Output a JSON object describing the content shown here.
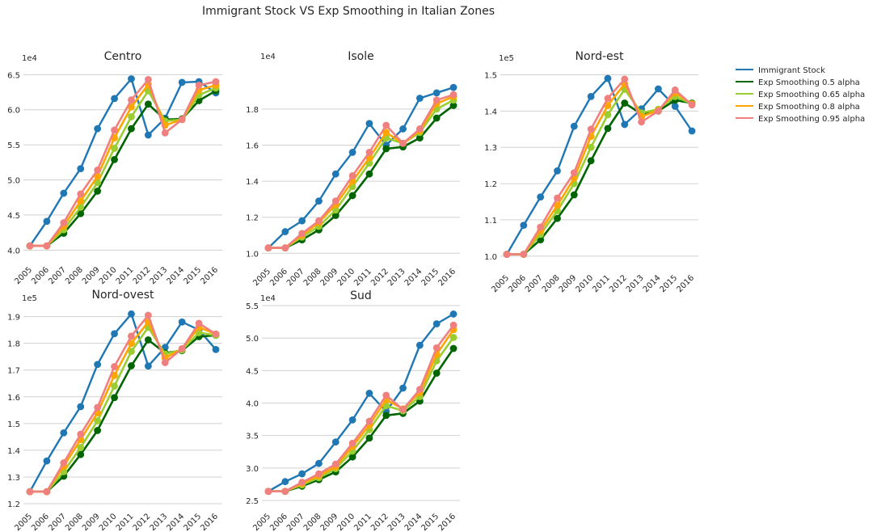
{
  "chart_data": {
    "type": "line",
    "title": "Immigrant Stock VS Exp Smoothing in Italian Zones",
    "legend": {
      "placement": "top-right",
      "entries": [
        "Immigrant Stock",
        "Exp Smoothing 0.5 alpha",
        "Exp Smoothing 0.65 alpha",
        "Exp Smoothing 0.8 alpha",
        "Exp Smoothing 0.95 alpha"
      ]
    },
    "colors": {
      "Immigrant Stock": "#1f77b4",
      "Exp Smoothing 0.5 alpha": "#006400",
      "Exp Smoothing 0.65 alpha": "#9acd32",
      "Exp Smoothing 0.8 alpha": "#ffa500",
      "Exp Smoothing 0.95 alpha": "#f08080",
      "grid": "#d0d0d0"
    },
    "grid": "horizontal",
    "x_tick_labels": [
      "2005",
      "2006",
      "2007",
      "2008",
      "2009",
      "2010",
      "2011",
      "2012",
      "2013",
      "2014",
      "2015",
      "2016"
    ],
    "panels": [
      {
        "title": "Centro",
        "offset_text": "1e4",
        "ylim": [
          3.9,
          6.55
        ],
        "yticks": [
          4.0,
          4.5,
          5.0,
          5.5,
          6.0,
          6.5
        ],
        "ytick_labels": [
          "4.0",
          "4.5",
          "5.0",
          "5.5",
          "6.0",
          "6.5"
        ],
        "series": [
          {
            "name": "Immigrant Stock",
            "values": [
              4.06,
              4.41,
              4.81,
              5.16,
              5.73,
              6.16,
              6.44,
              5.64,
              5.88,
              6.39,
              6.4,
              6.24
            ]
          },
          {
            "name": "Exp Smoothing 0.5 alpha",
            "values": [
              4.06,
              4.06,
              4.24,
              4.52,
              4.84,
              5.29,
              5.73,
              6.08,
              5.86,
              5.87,
              6.13,
              6.27
            ]
          },
          {
            "name": "Exp Smoothing 0.65 alpha",
            "values": [
              4.06,
              4.06,
              4.29,
              4.61,
              4.96,
              5.45,
              5.9,
              6.27,
              5.84,
              5.86,
              6.21,
              6.31
            ]
          },
          {
            "name": "Exp Smoothing 0.8 alpha",
            "values": [
              4.06,
              4.06,
              4.34,
              4.7,
              5.05,
              5.6,
              6.04,
              6.36,
              5.78,
              5.86,
              6.28,
              6.35
            ]
          },
          {
            "name": "Exp Smoothing 0.95 alpha",
            "values": [
              4.06,
              4.06,
              4.39,
              4.8,
              5.14,
              5.71,
              6.14,
              6.43,
              5.67,
              5.86,
              6.35,
              6.4
            ]
          }
        ]
      },
      {
        "title": "Isole",
        "offset_text": "1e4",
        "ylim": [
          0.97,
          1.97
        ],
        "yticks": [
          1.0,
          1.2,
          1.4,
          1.6,
          1.8
        ],
        "ytick_labels": [
          "1.0",
          "1.2",
          "1.4",
          "1.6",
          "1.8"
        ],
        "series": [
          {
            "name": "Immigrant Stock",
            "values": [
              1.03,
              1.12,
              1.18,
              1.29,
              1.44,
              1.56,
              1.72,
              1.6,
              1.69,
              1.86,
              1.89,
              1.92
            ]
          },
          {
            "name": "Exp Smoothing 0.5 alpha",
            "values": [
              1.03,
              1.03,
              1.075,
              1.13,
              1.21,
              1.32,
              1.44,
              1.58,
              1.59,
              1.64,
              1.75,
              1.82
            ]
          },
          {
            "name": "Exp Smoothing 0.65 alpha",
            "values": [
              1.03,
              1.03,
              1.09,
              1.15,
              1.24,
              1.37,
              1.5,
              1.64,
              1.61,
              1.67,
              1.8,
              1.85
            ]
          },
          {
            "name": "Exp Smoothing 0.8 alpha",
            "values": [
              1.03,
              1.03,
              1.1,
              1.17,
              1.27,
              1.4,
              1.53,
              1.67,
              1.61,
              1.68,
              1.83,
              1.87
            ]
          },
          {
            "name": "Exp Smoothing 0.95 alpha",
            "values": [
              1.03,
              1.03,
              1.11,
              1.18,
              1.29,
              1.43,
              1.56,
              1.71,
              1.61,
              1.69,
              1.85,
              1.88
            ]
          }
        ]
      },
      {
        "title": "Nord-est",
        "offset_text": "1e5",
        "ylim": [
          0.975,
          1.51
        ],
        "yticks": [
          1.0,
          1.1,
          1.2,
          1.3,
          1.4,
          1.5
        ],
        "ytick_labels": [
          "1.0",
          "1.1",
          "1.2",
          "1.3",
          "1.4",
          "1.5"
        ],
        "series": [
          {
            "name": "Immigrant Stock",
            "values": [
              1.005,
              1.085,
              1.163,
              1.235,
              1.358,
              1.44,
              1.49,
              1.363,
              1.406,
              1.461,
              1.413,
              1.345
            ]
          },
          {
            "name": "Exp Smoothing 0.5 alpha",
            "values": [
              1.005,
              1.005,
              1.045,
              1.104,
              1.169,
              1.263,
              1.352,
              1.422,
              1.392,
              1.4,
              1.43,
              1.422
            ]
          },
          {
            "name": "Exp Smoothing 0.65 alpha",
            "values": [
              1.005,
              1.005,
              1.06,
              1.125,
              1.2,
              1.3,
              1.39,
              1.46,
              1.395,
              1.405,
              1.44,
              1.42
            ]
          },
          {
            "name": "Exp Smoothing 0.8 alpha",
            "values": [
              1.005,
              1.005,
              1.07,
              1.14,
              1.215,
              1.33,
              1.415,
              1.475,
              1.385,
              1.402,
              1.45,
              1.42
            ]
          },
          {
            "name": "Exp Smoothing 0.95 alpha",
            "values": [
              1.005,
              1.005,
              1.08,
              1.16,
              1.23,
              1.35,
              1.435,
              1.488,
              1.37,
              1.4,
              1.458,
              1.417
            ]
          }
        ]
      },
      {
        "title": "Nord-ovest",
        "offset_text": "1e5",
        "ylim": [
          1.2,
          1.92
        ],
        "yticks": [
          1.2,
          1.3,
          1.4,
          1.5,
          1.6,
          1.7,
          1.8,
          1.9
        ],
        "ytick_labels": [
          "1.2",
          "1.3",
          "1.4",
          "1.5",
          "1.6",
          "1.7",
          "1.8",
          "1.9"
        ],
        "series": [
          {
            "name": "Immigrant Stock",
            "values": [
              1.245,
              1.36,
              1.465,
              1.563,
              1.721,
              1.836,
              1.91,
              1.715,
              1.785,
              1.88,
              1.85,
              1.777
            ]
          },
          {
            "name": "Exp Smoothing 0.5 alpha",
            "values": [
              1.245,
              1.245,
              1.303,
              1.384,
              1.474,
              1.597,
              1.716,
              1.813,
              1.764,
              1.773,
              1.825,
              1.83
            ]
          },
          {
            "name": "Exp Smoothing 0.65 alpha",
            "values": [
              1.245,
              1.245,
              1.32,
              1.41,
              1.51,
              1.64,
              1.77,
              1.86,
              1.76,
              1.775,
              1.84,
              1.83
            ]
          },
          {
            "name": "Exp Smoothing 0.8 alpha",
            "values": [
              1.245,
              1.245,
              1.34,
              1.44,
              1.54,
              1.68,
              1.8,
              1.88,
              1.745,
              1.78,
              1.86,
              1.835
            ]
          },
          {
            "name": "Exp Smoothing 0.95 alpha",
            "values": [
              1.245,
              1.245,
              1.353,
              1.46,
              1.56,
              1.713,
              1.827,
              1.905,
              1.728,
              1.78,
              1.875,
              1.835
            ]
          }
        ]
      },
      {
        "title": "Sud",
        "offset_text": "1e4",
        "ylim": [
          2.45,
          5.5
        ],
        "yticks": [
          2.5,
          3.0,
          3.5,
          4.0,
          4.5,
          5.0,
          5.5
        ],
        "ytick_labels": [
          "2.5",
          "3.0",
          "3.5",
          "4.0",
          "4.5",
          "5.0",
          "5.5"
        ],
        "series": [
          {
            "name": "Immigrant Stock",
            "values": [
              2.64,
              2.79,
              2.91,
              3.07,
              3.4,
              3.74,
              4.15,
              3.87,
              4.23,
              4.89,
              5.22,
              5.37
            ]
          },
          {
            "name": "Exp Smoothing 0.5 alpha",
            "values": [
              2.64,
              2.64,
              2.72,
              2.82,
              2.94,
              3.17,
              3.46,
              3.81,
              3.84,
              4.03,
              4.46,
              4.84
            ]
          },
          {
            "name": "Exp Smoothing 0.65 alpha",
            "values": [
              2.64,
              2.64,
              2.74,
              2.85,
              2.99,
              3.26,
              3.59,
              3.96,
              3.88,
              4.1,
              4.65,
              5.01
            ]
          },
          {
            "name": "Exp Smoothing 0.8 alpha",
            "values": [
              2.64,
              2.64,
              2.76,
              2.88,
              3.02,
              3.33,
              3.66,
              4.05,
              3.91,
              4.16,
              4.75,
              5.13
            ]
          },
          {
            "name": "Exp Smoothing 0.95 alpha",
            "values": [
              2.64,
              2.64,
              2.78,
              2.91,
              3.06,
              3.38,
              3.72,
              4.12,
              3.9,
              4.21,
              4.85,
              5.2
            ]
          }
        ]
      }
    ]
  }
}
